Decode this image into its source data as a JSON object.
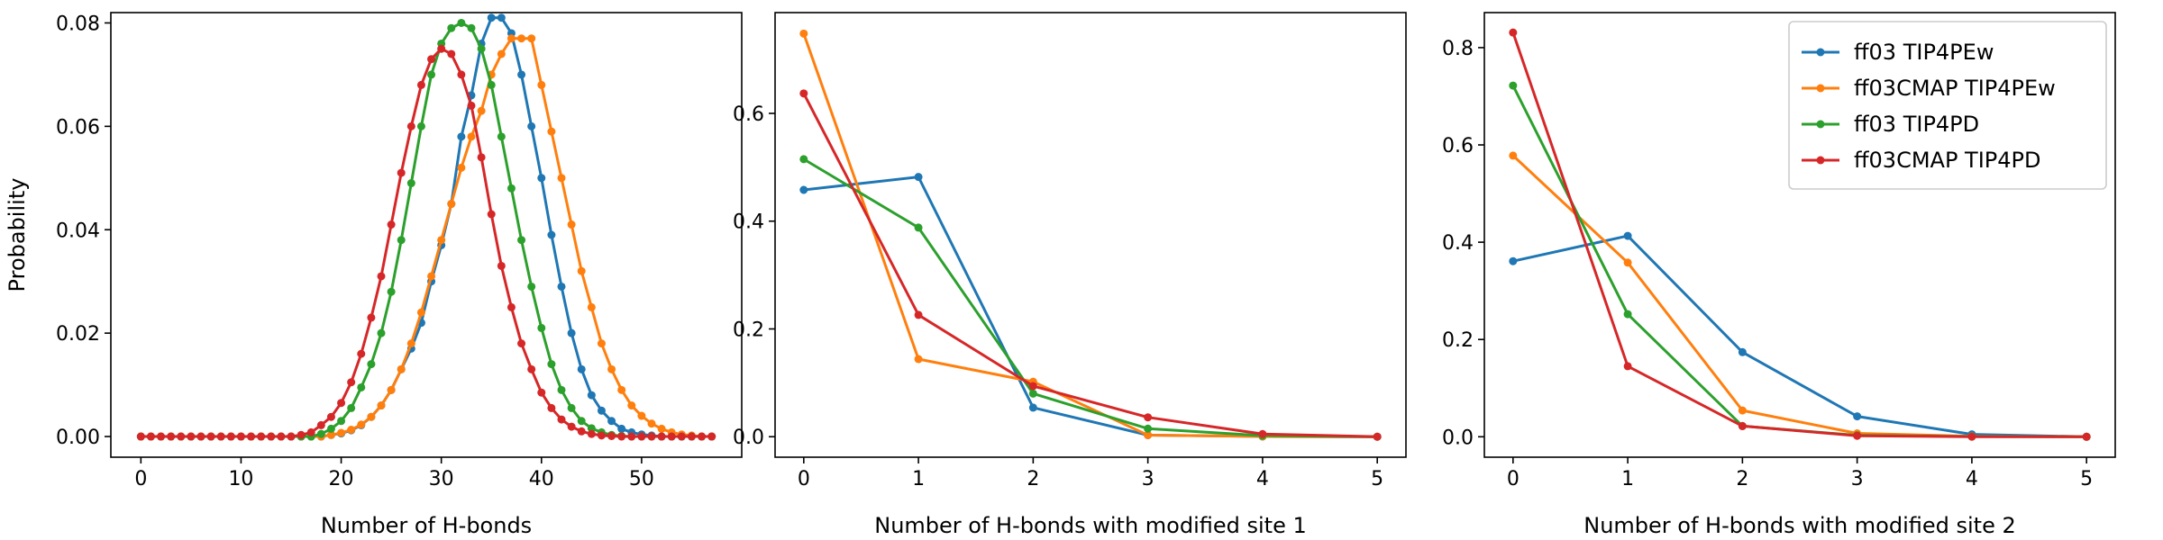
{
  "colors": {
    "ff03_TIP4PEw": "#1f77b4",
    "ff03CMAP_TIP4PEw": "#ff7f0e",
    "ff03_TIP4PD": "#2ca02c",
    "ff03CMAP_TIP4PD": "#d62728"
  },
  "chart_data": [
    {
      "type": "line",
      "title": "",
      "xlabel": "Number of H-bonds",
      "ylabel": "Probability",
      "xlim": [
        -3,
        60
      ],
      "ylim": [
        -0.004,
        0.082
      ],
      "xticks": [
        0,
        10,
        20,
        30,
        40,
        50
      ],
      "yticks": [
        0.0,
        0.02,
        0.04,
        0.06,
        0.08
      ],
      "ytick_labels": [
        "0.00",
        "0.02",
        "0.04",
        "0.06",
        "0.08"
      ],
      "grid": false,
      "legend": "none",
      "series": [
        {
          "name": "ff03 TIP4PEw",
          "color_key": "ff03_TIP4PEw",
          "x": [
            0,
            1,
            2,
            3,
            4,
            5,
            6,
            7,
            8,
            9,
            10,
            11,
            12,
            13,
            14,
            15,
            16,
            17,
            18,
            19,
            20,
            21,
            22,
            23,
            24,
            25,
            26,
            27,
            28,
            29,
            30,
            31,
            32,
            33,
            34,
            35,
            36,
            37,
            38,
            39,
            40,
            41,
            42,
            43,
            44,
            45,
            46,
            47,
            48,
            49,
            50,
            51,
            52,
            53,
            54,
            55,
            56,
            57
          ],
          "y": [
            0,
            0,
            0,
            0,
            0,
            0,
            0,
            0,
            0,
            0,
            0,
            0,
            0,
            0,
            0,
            0,
            0,
            0,
            0,
            0.0003,
            0.0006,
            0.0012,
            0.0022,
            0.0038,
            0.006,
            0.009,
            0.013,
            0.017,
            0.022,
            0.03,
            0.037,
            0.045,
            0.058,
            0.066,
            0.076,
            0.081,
            0.081,
            0.078,
            0.07,
            0.06,
            0.05,
            0.039,
            0.029,
            0.02,
            0.013,
            0.008,
            0.005,
            0.003,
            0.0015,
            0.0008,
            0.0004,
            0.0002,
            0,
            0,
            0,
            0,
            0,
            0
          ]
        },
        {
          "name": "ff03CMAP TIP4PEw",
          "color_key": "ff03CMAP_TIP4PEw",
          "x": [
            0,
            1,
            2,
            3,
            4,
            5,
            6,
            7,
            8,
            9,
            10,
            11,
            12,
            13,
            14,
            15,
            16,
            17,
            18,
            19,
            20,
            21,
            22,
            23,
            24,
            25,
            26,
            27,
            28,
            29,
            30,
            31,
            32,
            33,
            34,
            35,
            36,
            37,
            38,
            39,
            40,
            41,
            42,
            43,
            44,
            45,
            46,
            47,
            48,
            49,
            50,
            51,
            52,
            53,
            54,
            55,
            56,
            57
          ],
          "y": [
            0,
            0,
            0,
            0,
            0,
            0,
            0,
            0,
            0,
            0,
            0,
            0,
            0,
            0,
            0,
            0,
            0,
            0,
            0,
            0.0003,
            0.0007,
            0.0013,
            0.0023,
            0.0038,
            0.006,
            0.009,
            0.013,
            0.018,
            0.024,
            0.031,
            0.038,
            0.045,
            0.052,
            0.058,
            0.063,
            0.07,
            0.074,
            0.077,
            0.077,
            0.077,
            0.068,
            0.059,
            0.05,
            0.041,
            0.032,
            0.025,
            0.018,
            0.013,
            0.009,
            0.006,
            0.004,
            0.0025,
            0.0015,
            0.0008,
            0.0004,
            0.0002,
            0,
            0
          ]
        },
        {
          "name": "ff03 TIP4PD",
          "color_key": "ff03_TIP4PD",
          "x": [
            0,
            1,
            2,
            3,
            4,
            5,
            6,
            7,
            8,
            9,
            10,
            11,
            12,
            13,
            14,
            15,
            16,
            17,
            18,
            19,
            20,
            21,
            22,
            23,
            24,
            25,
            26,
            27,
            28,
            29,
            30,
            31,
            32,
            33,
            34,
            35,
            36,
            37,
            38,
            39,
            40,
            41,
            42,
            43,
            44,
            45,
            46,
            47,
            48,
            49,
            50,
            51,
            52,
            53,
            54,
            55,
            56,
            57
          ],
          "y": [
            0,
            0,
            0,
            0,
            0,
            0,
            0,
            0,
            0,
            0,
            0,
            0,
            0,
            0,
            0,
            0,
            0,
            0,
            0.0005,
            0.0015,
            0.003,
            0.0055,
            0.0095,
            0.014,
            0.02,
            0.028,
            0.038,
            0.049,
            0.06,
            0.07,
            0.076,
            0.079,
            0.08,
            0.079,
            0.075,
            0.068,
            0.058,
            0.048,
            0.038,
            0.029,
            0.021,
            0.014,
            0.009,
            0.0055,
            0.003,
            0.0016,
            0.0008,
            0.0003,
            0.0001,
            0,
            0,
            0,
            0,
            0,
            0,
            0,
            0,
            0
          ]
        },
        {
          "name": "ff03CMAP TIP4PD",
          "color_key": "ff03CMAP_TIP4PD",
          "x": [
            0,
            1,
            2,
            3,
            4,
            5,
            6,
            7,
            8,
            9,
            10,
            11,
            12,
            13,
            14,
            15,
            16,
            17,
            18,
            19,
            20,
            21,
            22,
            23,
            24,
            25,
            26,
            27,
            28,
            29,
            30,
            31,
            32,
            33,
            34,
            35,
            36,
            37,
            38,
            39,
            40,
            41,
            42,
            43,
            44,
            45,
            46,
            47,
            48,
            49,
            50,
            51,
            52,
            53,
            54,
            55,
            56,
            57
          ],
          "y": [
            0,
            0,
            0,
            0,
            0,
            0,
            0,
            0,
            0,
            0,
            0,
            0,
            0,
            0,
            0,
            0,
            0.0003,
            0.0008,
            0.0022,
            0.0038,
            0.0065,
            0.0105,
            0.016,
            0.023,
            0.031,
            0.041,
            0.051,
            0.06,
            0.068,
            0.073,
            0.075,
            0.074,
            0.07,
            0.064,
            0.054,
            0.043,
            0.033,
            0.025,
            0.018,
            0.013,
            0.0085,
            0.0055,
            0.0033,
            0.0019,
            0.001,
            0.0005,
            0.0002,
            0.0001,
            0,
            0,
            0,
            0,
            0,
            0,
            0,
            0,
            0,
            0
          ]
        }
      ]
    },
    {
      "type": "line",
      "title": "",
      "xlabel": "Number of H-bonds with modified site 1",
      "ylabel": "",
      "xlim": [
        -0.25,
        5.25
      ],
      "ylim": [
        -0.038,
        0.787
      ],
      "xticks": [
        0,
        1,
        2,
        3,
        4,
        5
      ],
      "yticks": [
        0.0,
        0.2,
        0.4,
        0.6
      ],
      "ytick_labels": [
        "0.0",
        "0.2",
        "0.4",
        "0.6"
      ],
      "grid": false,
      "legend": "none",
      "series": [
        {
          "name": "ff03 TIP4PEw",
          "color_key": "ff03_TIP4PEw",
          "x": [
            0,
            1,
            2,
            3,
            4,
            5
          ],
          "y": [
            0.458,
            0.482,
            0.054,
            0.003,
            0.0005,
            0
          ]
        },
        {
          "name": "ff03CMAP TIP4PEw",
          "color_key": "ff03CMAP_TIP4PEw",
          "x": [
            0,
            1,
            2,
            3,
            4,
            5
          ],
          "y": [
            0.748,
            0.144,
            0.102,
            0.003,
            0.0005,
            0
          ]
        },
        {
          "name": "ff03 TIP4PD",
          "color_key": "ff03_TIP4PD",
          "x": [
            0,
            1,
            2,
            3,
            4,
            5
          ],
          "y": [
            0.515,
            0.388,
            0.08,
            0.015,
            0.002,
            0
          ]
        },
        {
          "name": "ff03CMAP TIP4PD",
          "color_key": "ff03CMAP_TIP4PD",
          "x": [
            0,
            1,
            2,
            3,
            4,
            5
          ],
          "y": [
            0.637,
            0.226,
            0.094,
            0.036,
            0.005,
            0
          ]
        }
      ]
    },
    {
      "type": "line",
      "title": "",
      "xlabel": "Number of H-bonds with modified site 2",
      "ylabel": "",
      "xlim": [
        -0.25,
        5.25
      ],
      "ylim": [
        -0.042,
        0.872
      ],
      "xticks": [
        0,
        1,
        2,
        3,
        4,
        5
      ],
      "yticks": [
        0.0,
        0.2,
        0.4,
        0.6,
        0.8
      ],
      "ytick_labels": [
        "0.0",
        "0.2",
        "0.4",
        "0.6",
        "0.8"
      ],
      "grid": false,
      "legend": "top-right",
      "series": [
        {
          "name": "ff03 TIP4PEw",
          "color_key": "ff03_TIP4PEw",
          "x": [
            0,
            1,
            2,
            3,
            4,
            5
          ],
          "y": [
            0.361,
            0.413,
            0.174,
            0.042,
            0.005,
            0
          ]
        },
        {
          "name": "ff03CMAP TIP4PEw",
          "color_key": "ff03CMAP_TIP4PEw",
          "x": [
            0,
            1,
            2,
            3,
            4,
            5
          ],
          "y": [
            0.578,
            0.358,
            0.054,
            0.007,
            0.001,
            0
          ]
        },
        {
          "name": "ff03 TIP4PD",
          "color_key": "ff03_TIP4PD",
          "x": [
            0,
            1,
            2,
            3,
            4,
            5
          ],
          "y": [
            0.722,
            0.252,
            0.022,
            0.003,
            0.0005,
            0
          ]
        },
        {
          "name": "ff03CMAP TIP4PD",
          "color_key": "ff03CMAP_TIP4PD",
          "x": [
            0,
            1,
            2,
            3,
            4,
            5
          ],
          "y": [
            0.831,
            0.145,
            0.022,
            0.002,
            0.0002,
            0
          ]
        }
      ]
    }
  ]
}
